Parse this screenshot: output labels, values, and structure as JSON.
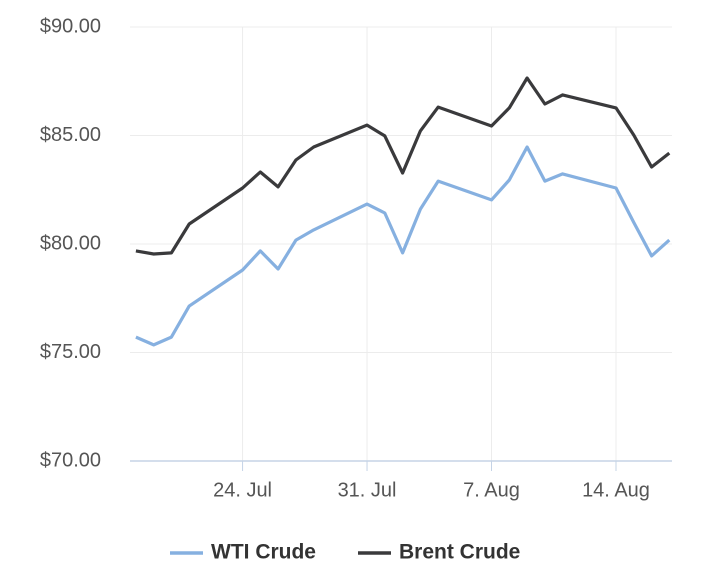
{
  "chart_data": {
    "type": "line",
    "x": [
      "18. Jul",
      "19. Jul",
      "20. Jul",
      "21. Jul",
      "24. Jul",
      "25. Jul",
      "26. Jul",
      "27. Jul",
      "28. Jul",
      "31. Jul",
      "1. Aug",
      "2. Aug",
      "3. Aug",
      "4. Aug",
      "7. Aug",
      "8. Aug",
      "9. Aug",
      "10. Aug",
      "11. Aug",
      "14. Aug",
      "15. Aug",
      "16. Aug",
      "17. Aug"
    ],
    "series": [
      {
        "name": "WTI Crude",
        "color": "#86b0e0",
        "values": [
          75.71,
          75.35,
          75.71,
          77.14,
          78.8,
          79.68,
          78.85,
          80.18,
          80.65,
          81.84,
          81.43,
          79.59,
          81.61,
          82.9,
          82.03,
          82.95,
          84.47,
          82.9,
          83.23,
          82.58,
          80.99,
          79.45,
          80.18
        ]
      },
      {
        "name": "Brent Crude",
        "color": "#3a3a3c",
        "values": [
          79.68,
          79.54,
          79.59,
          80.92,
          82.58,
          83.32,
          82.63,
          83.87,
          84.47,
          85.48,
          84.98,
          83.27,
          85.21,
          86.31,
          85.44,
          86.27,
          87.65,
          86.45,
          86.87,
          86.27,
          85.02,
          83.55,
          84.19
        ]
      }
    ],
    "xticks": [
      "24. Jul",
      "31. Jul",
      "7. Aug",
      "14. Aug"
    ],
    "ylim": [
      70,
      90
    ],
    "yticks": [
      {
        "value": 70,
        "label": "$70.00"
      },
      {
        "value": 75,
        "label": "$75.00"
      },
      {
        "value": 80,
        "label": "$80.00"
      },
      {
        "value": 85,
        "label": "$85.00"
      },
      {
        "value": 90,
        "label": "$90.00"
      }
    ],
    "grid": true,
    "legend": "bottom"
  }
}
